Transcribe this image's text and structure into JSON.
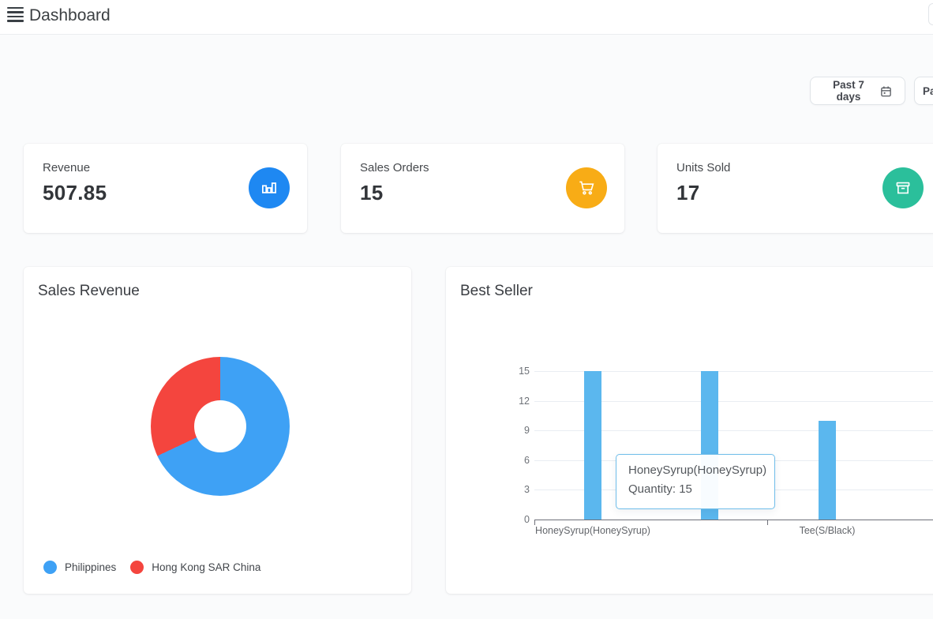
{
  "header": {
    "title": "Dashboard"
  },
  "filters": {
    "range_button": {
      "label": "Past 7 days",
      "icon": "calendar-icon"
    },
    "partial_button": {
      "label": "Pa"
    }
  },
  "stats": [
    {
      "label": "Revenue",
      "value": "507.85",
      "icon": "bar-chart-icon",
      "color": "#1e88f2"
    },
    {
      "label": "Sales Orders",
      "value": "15",
      "icon": "cart-icon",
      "color": "#f8ac16"
    },
    {
      "label": "Units Sold",
      "value": "17",
      "icon": "archive-icon",
      "color": "#2bbf9b"
    }
  ],
  "sales_revenue": {
    "title": "Sales Revenue"
  },
  "best_seller": {
    "title": "Best Seller"
  },
  "chart_data": [
    {
      "type": "pie",
      "title": "Sales Revenue",
      "labels": [
        "Philippines",
        "Hong Kong SAR China"
      ],
      "values": [
        68,
        32
      ],
      "values_note": "percent, estimated from arc angles (no numeric labels shown)",
      "colors": [
        "#3ea1f5",
        "#f4453e"
      ],
      "donut": true,
      "legend_position": "bottom-left"
    },
    {
      "type": "bar",
      "title": "Best Seller",
      "categories": [
        "HoneySyrup(HoneySyrup)",
        "",
        "Tee(S/Black)",
        ""
      ],
      "visible_category_labels": [
        "HoneySyrup(HoneySyrup)",
        "Tee(S/Black)"
      ],
      "series": [
        {
          "name": "Quantity",
          "values": [
            15,
            15,
            10,
            null
          ]
        }
      ],
      "yticks": [
        0,
        3,
        6,
        9,
        12,
        15
      ],
      "ylim": [
        0,
        15
      ],
      "grid": true,
      "bar_color": "#5bb7ee",
      "tooltip": {
        "title": "HoneySyrup(HoneySyrup)",
        "text": "Quantity: 15"
      }
    }
  ]
}
